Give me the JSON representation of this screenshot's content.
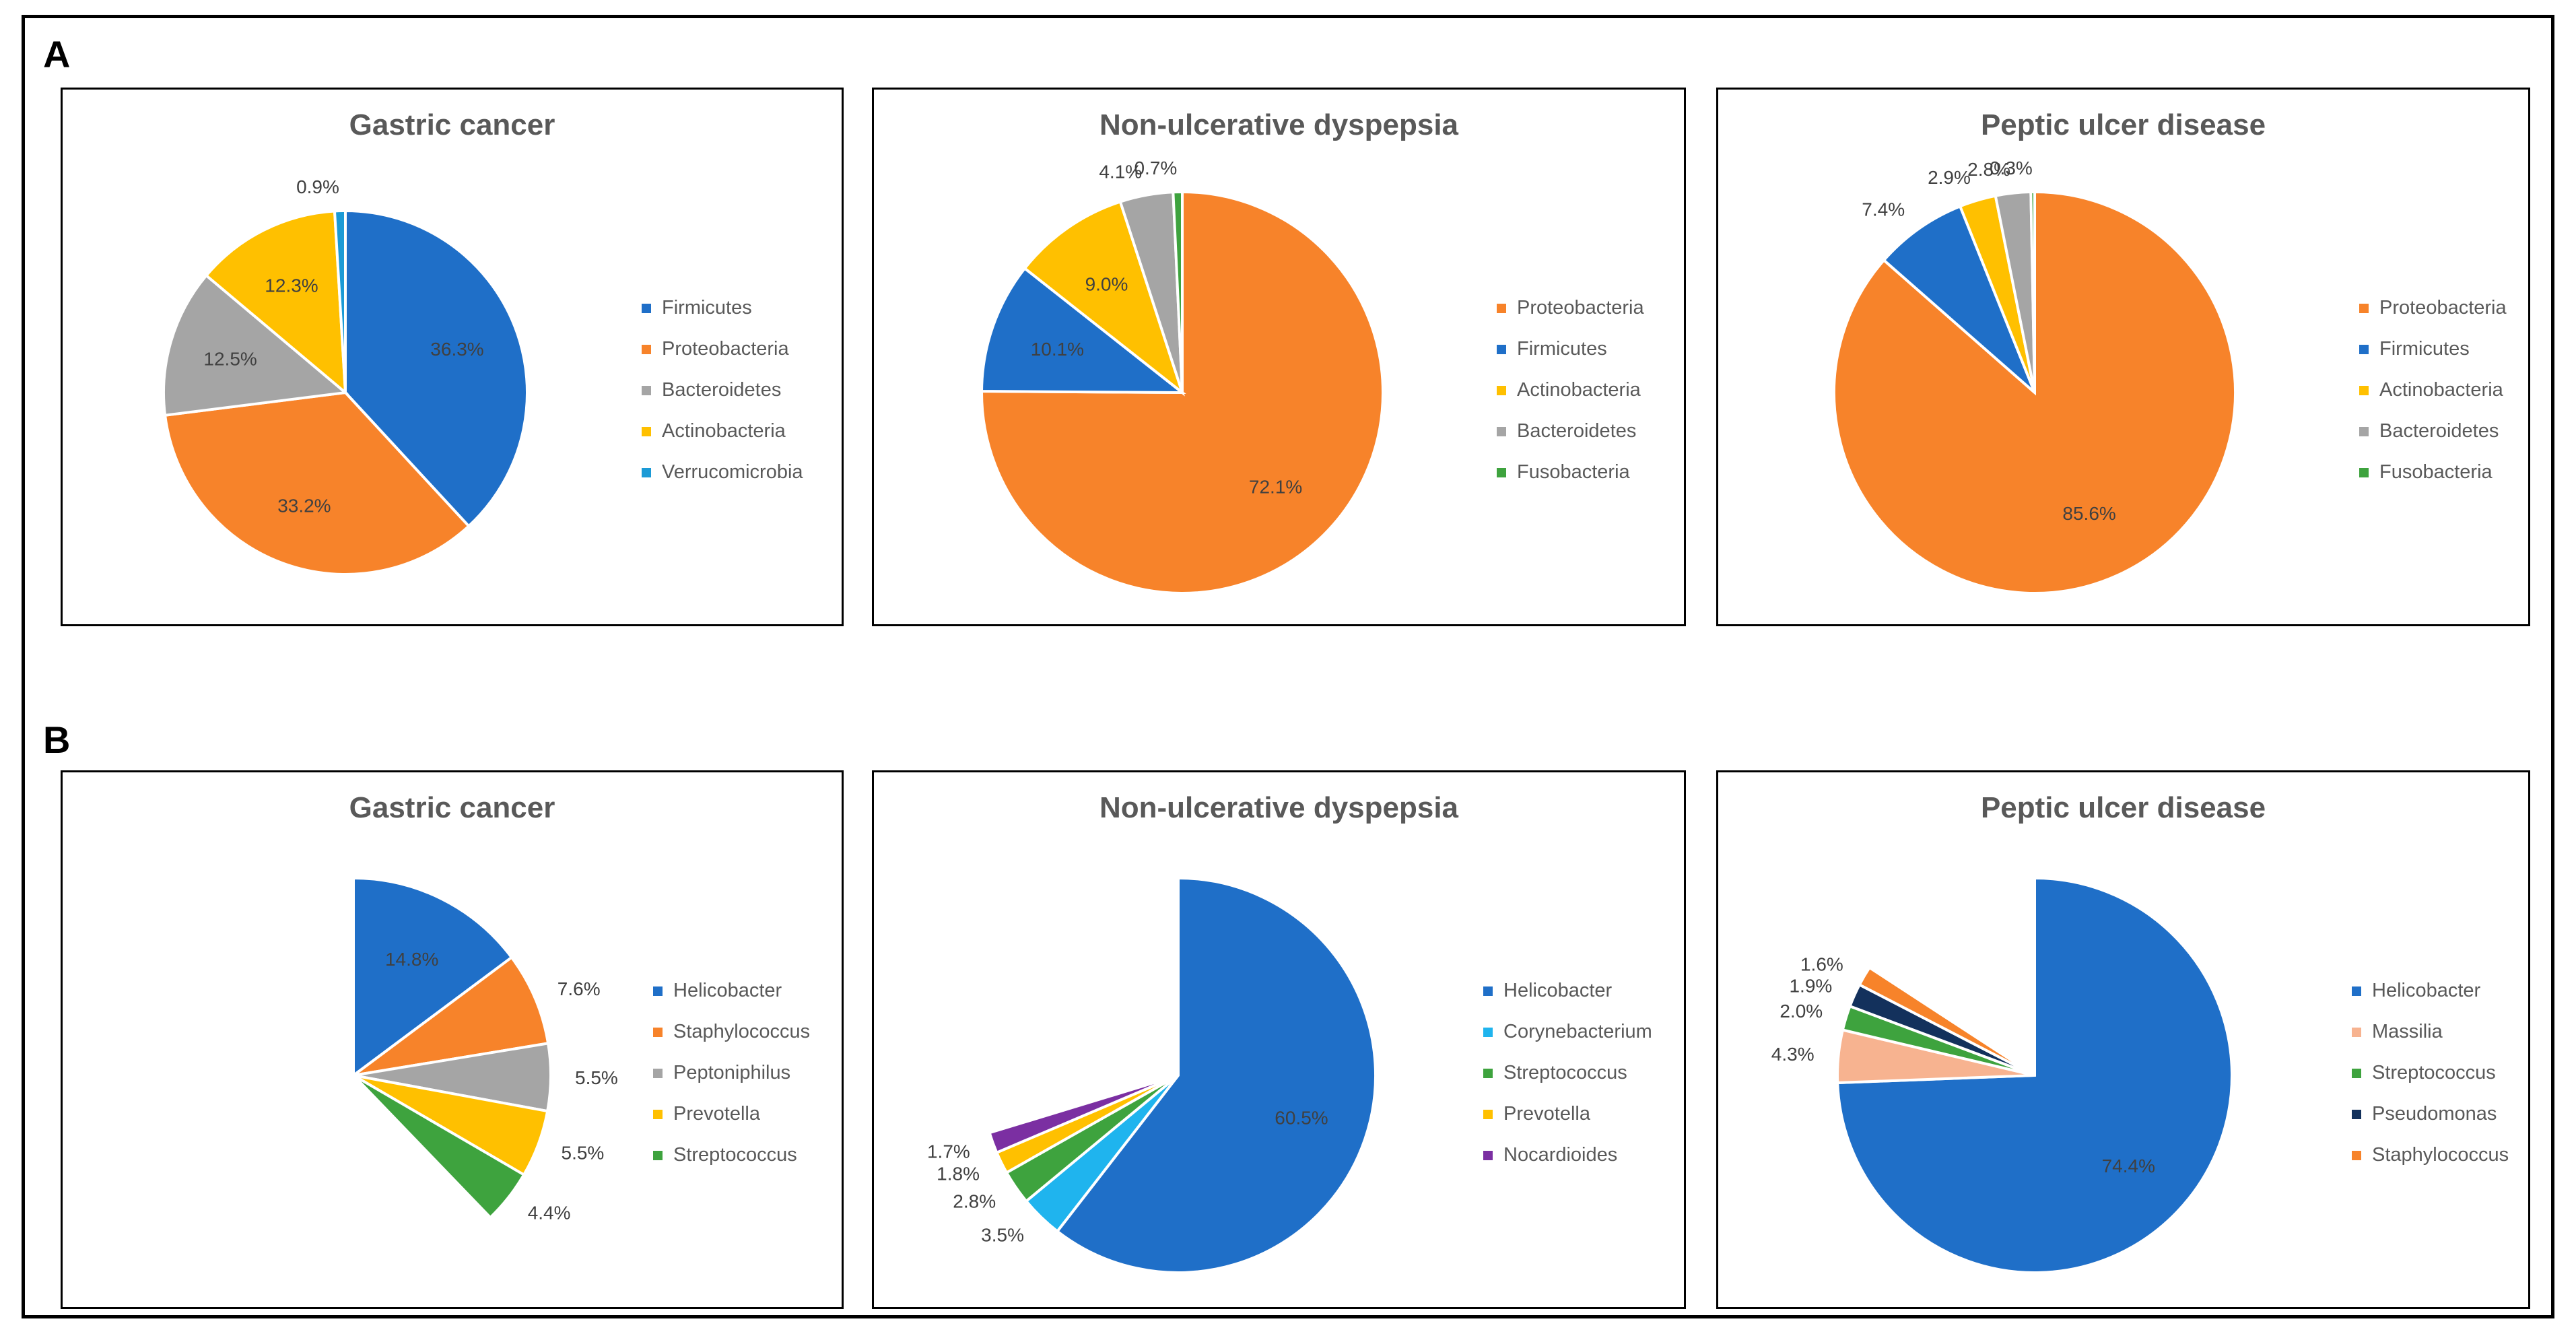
{
  "labels": {
    "panel_a": "A",
    "panel_b": "B"
  },
  "chart_data": [
    {
      "type": "pie",
      "panel": "A",
      "title": "Gastric cancer",
      "slices": [
        {
          "name": "Firmicutes",
          "value": 36.3,
          "label": "36.3%",
          "color": "#1f6fc8"
        },
        {
          "name": "Proteobacteria",
          "value": 33.2,
          "label": "33.2%",
          "color": "#f7832a"
        },
        {
          "name": "Bacteroidetes",
          "value": 12.5,
          "label": "12.5%",
          "color": "#a5a5a5"
        },
        {
          "name": "Actinobacteria",
          "value": 12.3,
          "label": "12.3%",
          "color": "#ffc000"
        },
        {
          "name": "Verrucomicrobia",
          "value": 0.9,
          "label": "0.9%",
          "color": "#1b9ad6"
        }
      ],
      "legend_position": "right"
    },
    {
      "type": "pie",
      "panel": "A",
      "title": "Non-ulcerative dyspepsia",
      "slices": [
        {
          "name": "Proteobacteria",
          "value": 72.1,
          "label": "72.1%",
          "color": "#f7832a"
        },
        {
          "name": "Firmicutes",
          "value": 10.1,
          "label": "10.1%",
          "color": "#1f6fc8"
        },
        {
          "name": "Actinobacteria",
          "value": 9.0,
          "label": "9.0%",
          "color": "#ffc000"
        },
        {
          "name": "Bacteroidetes",
          "value": 4.1,
          "label": "4.1%",
          "color": "#a5a5a5"
        },
        {
          "name": "Fusobacteria",
          "value": 0.7,
          "label": "0.7%",
          "color": "#3ea33e"
        }
      ],
      "legend_position": "right"
    },
    {
      "type": "pie",
      "panel": "A",
      "title": "Peptic ulcer disease",
      "slices": [
        {
          "name": "Proteobacteria",
          "value": 85.6,
          "label": "85.6%",
          "color": "#f7832a"
        },
        {
          "name": "Firmicutes",
          "value": 7.4,
          "label": "7.4%",
          "color": "#1f6fc8"
        },
        {
          "name": "Actinobacteria",
          "value": 2.9,
          "label": "2.9%",
          "color": "#ffc000"
        },
        {
          "name": "Bacteroidetes",
          "value": 2.8,
          "label": "2.8%",
          "color": "#a5a5a5"
        },
        {
          "name": "Fusobacteria",
          "value": 0.3,
          "label": "0.3%",
          "color": "#3ea33e"
        }
      ],
      "legend_position": "right"
    },
    {
      "type": "pie",
      "panel": "B",
      "title": "Gastric cancer",
      "slices": [
        {
          "name": "Helicobacter",
          "value": 14.8,
          "label": "14.8%",
          "color": "#1f6fc8"
        },
        {
          "name": "Staphylococcus",
          "value": 7.6,
          "label": "7.6%",
          "color": "#f7832a"
        },
        {
          "name": "Peptoniphilus",
          "value": 5.5,
          "label": "5.5%",
          "color": "#a5a5a5"
        },
        {
          "name": "Prevotella",
          "value": 5.5,
          "label": "5.5%",
          "color": "#ffc000"
        },
        {
          "name": "Streptococcus",
          "value": 4.4,
          "label": "4.4%",
          "color": "#3ea33e"
        }
      ],
      "legend_position": "right"
    },
    {
      "type": "pie",
      "panel": "B",
      "title": "Non-ulcerative dyspepsia",
      "slices": [
        {
          "name": "Helicobacter",
          "value": 60.5,
          "label": "60.5%",
          "color": "#1f6fc8"
        },
        {
          "name": "Corynebacterium",
          "value": 3.5,
          "label": "3.5%",
          "color": "#1fb4ee"
        },
        {
          "name": "Streptococcus",
          "value": 2.8,
          "label": "2.8%",
          "color": "#3ea33e"
        },
        {
          "name": "Prevotella",
          "value": 1.8,
          "label": "1.8%",
          "color": "#ffc000"
        },
        {
          "name": "Nocardioides",
          "value": 1.7,
          "label": "1.7%",
          "color": "#7b2fa2"
        }
      ],
      "legend_position": "right"
    },
    {
      "type": "pie",
      "panel": "B",
      "title": "Peptic ulcer disease",
      "slices": [
        {
          "name": "Helicobacter",
          "value": 74.4,
          "label": "74.4%",
          "color": "#1f6fc8"
        },
        {
          "name": "Massilia",
          "value": 4.3,
          "label": "4.3%",
          "color": "#f7b390"
        },
        {
          "name": "Streptococcus",
          "value": 2.0,
          "label": "2.0%",
          "color": "#3ea33e"
        },
        {
          "name": "Pseudomonas",
          "value": 1.9,
          "label": "1.9%",
          "color": "#13315c"
        },
        {
          "name": "Staphylococcus",
          "value": 1.6,
          "label": "1.6%",
          "color": "#f7832a"
        }
      ],
      "legend_position": "right"
    }
  ]
}
